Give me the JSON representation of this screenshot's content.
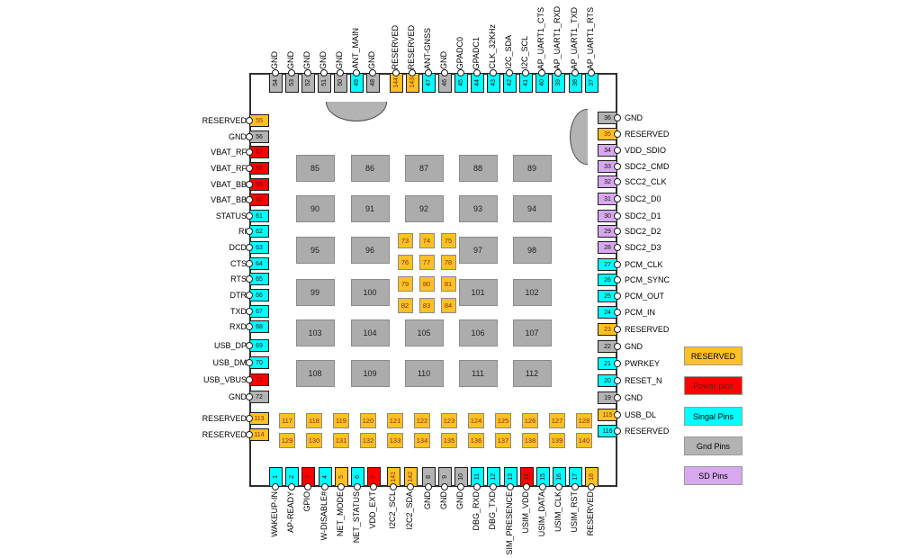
{
  "colors": {
    "reserved": "#FFC125",
    "power": "#FF0000",
    "signal": "#00FFFF",
    "gnd": "#B3B3B3",
    "sd": "#D8A8EE",
    "pad_gray": "#ACACAC",
    "pad_orange": "#FFC125"
  },
  "pins": {
    "top": [
      {
        "num": "54",
        "label": "GND",
        "type": "gnd"
      },
      {
        "num": "53",
        "label": "GND",
        "type": "gnd"
      },
      {
        "num": "52",
        "label": "GND",
        "type": "gnd"
      },
      {
        "num": "51",
        "label": "GND",
        "type": "gnd"
      },
      {
        "num": "50",
        "label": "GND",
        "type": "gnd"
      },
      {
        "num": "49",
        "label": "ANT_MAIN",
        "type": "signal"
      },
      {
        "num": "48",
        "label": "GND",
        "type": "gnd"
      },
      {
        "num": "144",
        "label": "RESERVED",
        "type": "reserved"
      },
      {
        "num": "143",
        "label": "RESERVED",
        "type": "reserved"
      },
      {
        "num": "47",
        "label": "ANT-GNSS",
        "type": "signal"
      },
      {
        "num": "46",
        "label": "GND",
        "type": "gnd"
      },
      {
        "num": "45",
        "label": "GPADC0",
        "type": "signal"
      },
      {
        "num": "44",
        "label": "GPADC1",
        "type": "signal"
      },
      {
        "num": "43",
        "label": "CLK_32KHz",
        "type": "signal"
      },
      {
        "num": "42",
        "label": "I2C_SDA",
        "type": "signal"
      },
      {
        "num": "41",
        "label": "I2C_SCL",
        "type": "signal"
      },
      {
        "num": "40",
        "label": "AP_UART1_CTS",
        "type": "signal"
      },
      {
        "num": "39",
        "label": "AP_UART1_RXD",
        "type": "signal"
      },
      {
        "num": "38",
        "label": "AP_UART1_TXD",
        "type": "signal"
      },
      {
        "num": "37",
        "label": "AP_UART1_RTS",
        "type": "signal"
      }
    ],
    "left": [
      {
        "num": "55",
        "label": "RESERVED",
        "type": "reserved"
      },
      {
        "num": "56",
        "label": "GND",
        "type": "gnd"
      },
      {
        "num": "57",
        "label": "VBAT_RF",
        "type": "power"
      },
      {
        "num": "58",
        "label": "VBAT_RF",
        "type": "power"
      },
      {
        "num": "59",
        "label": "VBAT_BB",
        "type": "power"
      },
      {
        "num": "60",
        "label": "VBAT_BB",
        "type": "power"
      },
      {
        "num": "61",
        "label": "STATUS",
        "type": "signal"
      },
      {
        "num": "62",
        "label": "RI",
        "type": "signal"
      },
      {
        "num": "63",
        "label": "DCD",
        "type": "signal"
      },
      {
        "num": "64",
        "label": "CTS",
        "type": "signal"
      },
      {
        "num": "65",
        "label": "RTS",
        "type": "signal"
      },
      {
        "num": "66",
        "label": "DTR",
        "type": "signal"
      },
      {
        "num": "67",
        "label": "TXD",
        "type": "signal"
      },
      {
        "num": "68",
        "label": "RXD",
        "type": "signal"
      },
      {
        "num": "69",
        "label": "USB_DP",
        "type": "signal"
      },
      {
        "num": "70",
        "label": "USB_DM",
        "type": "signal"
      },
      {
        "num": "71",
        "label": "USB_VBUS",
        "type": "power"
      },
      {
        "num": "72",
        "label": "GND",
        "type": "gnd"
      },
      {
        "num": "113",
        "label": "RESERVED",
        "type": "reserved"
      },
      {
        "num": "114",
        "label": "RESERVED",
        "type": "reserved"
      }
    ],
    "right": [
      {
        "num": "36",
        "label": "GND",
        "type": "gnd"
      },
      {
        "num": "35",
        "label": "RESERVED",
        "type": "reserved"
      },
      {
        "num": "34",
        "label": "VDD_SDIO",
        "type": "sd"
      },
      {
        "num": "33",
        "label": "SDC2_CMD",
        "type": "sd"
      },
      {
        "num": "32",
        "label": "SCC2_CLK",
        "type": "sd"
      },
      {
        "num": "31",
        "label": "SDC2_D0",
        "type": "sd"
      },
      {
        "num": "30",
        "label": "SDC2_D1",
        "type": "sd"
      },
      {
        "num": "29",
        "label": "SDC2_D2",
        "type": "sd"
      },
      {
        "num": "28",
        "label": "SDC2_D3",
        "type": "sd"
      },
      {
        "num": "27",
        "label": "PCM_CLK",
        "type": "signal"
      },
      {
        "num": "26",
        "label": "PCM_SYNC",
        "type": "signal"
      },
      {
        "num": "25",
        "label": "PCM_OUT",
        "type": "signal"
      },
      {
        "num": "24",
        "label": "PCM_IN",
        "type": "signal"
      },
      {
        "num": "23",
        "label": "RESERVED",
        "type": "reserved"
      },
      {
        "num": "22",
        "label": "GND",
        "type": "gnd"
      },
      {
        "num": "21",
        "label": "PWRKEY",
        "type": "signal"
      },
      {
        "num": "20",
        "label": "RESET_N",
        "type": "signal"
      },
      {
        "num": "19",
        "label": "GND",
        "type": "gnd"
      },
      {
        "num": "115",
        "label": "USB_DL",
        "type": "reserved"
      },
      {
        "num": "116",
        "label": "RESERVED",
        "type": "signal"
      }
    ],
    "bottom": [
      {
        "num": "1",
        "label": "WAKEUP-IN",
        "type": "signal"
      },
      {
        "num": "2",
        "label": "AP-READY",
        "type": "signal"
      },
      {
        "num": "3",
        "label": "GPIO",
        "type": "power"
      },
      {
        "num": "4",
        "label": "W-DISABLE#",
        "type": "signal"
      },
      {
        "num": "5",
        "label": "NET_MODE",
        "type": "reserved"
      },
      {
        "num": "6",
        "label": "NET_STATUS",
        "type": "signal"
      },
      {
        "num": "7",
        "label": "VDD_EXT",
        "type": "power"
      },
      {
        "num": "141",
        "label": "I2C2_SCL",
        "type": "reserved"
      },
      {
        "num": "142",
        "label": "I2C2_SDA",
        "type": "reserved"
      },
      {
        "num": "8",
        "label": "GND",
        "type": "gnd"
      },
      {
        "num": "9",
        "label": "GND",
        "type": "gnd"
      },
      {
        "num": "10",
        "label": "GND",
        "type": "gnd"
      },
      {
        "num": "11",
        "label": "DBG_RXD",
        "type": "signal"
      },
      {
        "num": "12",
        "label": "DBG_TXD",
        "type": "signal"
      },
      {
        "num": "13",
        "label": "SIM_PRESENCE",
        "type": "signal"
      },
      {
        "num": "14",
        "label": "USIM_VDD",
        "type": "power"
      },
      {
        "num": "15",
        "label": "USIM_DATA",
        "type": "signal"
      },
      {
        "num": "16",
        "label": "USIM_CLK",
        "type": "signal"
      },
      {
        "num": "17",
        "label": "USIM_RST",
        "type": "signal"
      },
      {
        "num": "18",
        "label": "RESERVED",
        "type": "reserved"
      }
    ]
  },
  "center_pads": {
    "gray_rows": [
      [
        "85",
        "86",
        "87",
        "88",
        "89"
      ],
      [
        "90",
        "91",
        "92",
        "93",
        "94"
      ],
      [
        "95",
        "96",
        "97",
        "98"
      ],
      [
        "99",
        "100",
        "101",
        "102"
      ],
      [
        "103",
        "104",
        "105",
        "106",
        "107"
      ],
      [
        "108",
        "109",
        "110",
        "111",
        "112"
      ]
    ],
    "inner_orange_grid": [
      [
        "73",
        "74",
        "75"
      ],
      [
        "76",
        "77",
        "78"
      ],
      [
        "79",
        "80",
        "81"
      ],
      [
        "82",
        "83",
        "84"
      ]
    ],
    "bottom_orange_rows": [
      [
        "117",
        "118",
        "119",
        "120",
        "121",
        "122",
        "123",
        "124",
        "125",
        "126",
        "127",
        "128"
      ],
      [
        "129",
        "130",
        "131",
        "132",
        "133",
        "134",
        "135",
        "136",
        "137",
        "138",
        "139",
        "140"
      ]
    ]
  },
  "legend": {
    "items": [
      {
        "label": "RESERVED",
        "type": "reserved"
      },
      {
        "label": "Power pins",
        "type": "power"
      },
      {
        "label": "Singal Pins",
        "type": "signal"
      },
      {
        "label": "Gnd Pins",
        "type": "gnd"
      },
      {
        "label": "SD Pins",
        "type": "sd"
      }
    ]
  }
}
